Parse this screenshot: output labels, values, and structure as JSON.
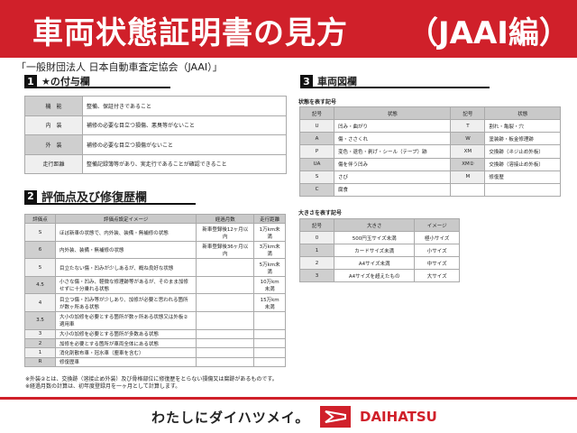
{
  "header": {
    "title": "車両状態証明書の見方",
    "subtitle": "（JAAI編）"
  },
  "organization": "「一般財団法人 日本自動車査定協会（JAAI）」",
  "section1": {
    "num": "1",
    "title": "★の付与欄",
    "rows": [
      {
        "label": "機　能",
        "text": "整備、保証付きであること"
      },
      {
        "label": "内　装",
        "text": "補修の必要な目立つ損傷、悪臭等がないこと"
      },
      {
        "label": "外　装",
        "text": "補修の必要な目立つ損傷がないこと"
      },
      {
        "label": "走行距離",
        "text": "整備記録簿等があり、実走行であることが確認できること"
      }
    ]
  },
  "section2": {
    "num": "2",
    "title": "評価点及び修復歴欄",
    "headers": [
      "評価点",
      "評価点設定イメージ",
      "経過月数",
      "走行距離"
    ],
    "rows": [
      [
        "S",
        "ほぼ新車の状態で、内外装、装備・無補修の状態",
        "新車登録後12ヶ月以内",
        "1万km未満"
      ],
      [
        "6",
        "内外装、装備・無補修の状態",
        "新車登録後36ヶ月以内",
        "3万km未満"
      ],
      [
        "5",
        "目立たない傷・凹みが少しあるが、概ね良好な状態",
        "",
        "5万km未満"
      ],
      [
        "4.5",
        "小さな傷・凹み、軽微な修理跡等があるが、そのまま加修せずに十分乗れる状態",
        "",
        "10万km未満"
      ],
      [
        "4",
        "目立つ傷・凹み等が少しあり、加修が必要と思われる箇所が数ヶ所ある状態",
        "",
        "15万km未満"
      ],
      [
        "3.5",
        "大小の加修を必要とする箇所が数ヶ所ある状態又は外板②適用車",
        "",
        ""
      ],
      [
        "3",
        "大小の加修を必要とする箇所が多数ある状態",
        "",
        ""
      ],
      [
        "2",
        "加修を必要とする箇所が車両全体にある状態",
        "",
        ""
      ],
      [
        "1",
        "消化剤散布車・冠水車（塵車を含む）",
        "",
        ""
      ],
      [
        "R",
        "修復歴車",
        "",
        ""
      ]
    ]
  },
  "notes": [
    "※外装②とは、交換跡（溶接止め外装）及び骨格部位に修復歴をとらない損傷又は腐跡があるものです。",
    "※経過月数の計算は、初年度登録月を一ヶ月として計算します。"
  ],
  "section3": {
    "num": "3",
    "title": "車両図欄",
    "state_title": "状態を表す記号",
    "state_headers": [
      "記号",
      "状態",
      "記号",
      "状態"
    ],
    "state_rows": [
      [
        "U",
        "凹み・曲がり",
        "T",
        "割れ・亀裂・穴"
      ],
      [
        "A",
        "傷・ささくれ",
        "W",
        "塗装跡・板金修理跡"
      ],
      [
        "P",
        "変色・退色・剥げ・シール（テープ）跡",
        "XM",
        "交換跡（ネジ止め外板）"
      ],
      [
        "UA",
        "傷を伴う凹み",
        "XM②",
        "交換跡（溶接止め外板）"
      ],
      [
        "S",
        "さび",
        "M",
        "修復歴"
      ],
      [
        "C",
        "腐食",
        "",
        ""
      ]
    ],
    "size_title": "大きさを表す記号",
    "size_headers": [
      "記号",
      "大きさ",
      "イメージ"
    ],
    "size_rows": [
      [
        "0",
        "500円玉サイズ未満",
        "極小サイズ"
      ],
      [
        "1",
        "カードサイズ未満",
        "小サイズ"
      ],
      [
        "2",
        "A4サイズ未満",
        "中サイズ"
      ],
      [
        "3",
        "A4サイズを超えたもの",
        "大サイズ"
      ]
    ]
  },
  "footer": {
    "slogan": "わたしにダイハツメイ。",
    "brand": "DAIHATSU"
  },
  "colors": {
    "brand_red": "#d0202a"
  }
}
